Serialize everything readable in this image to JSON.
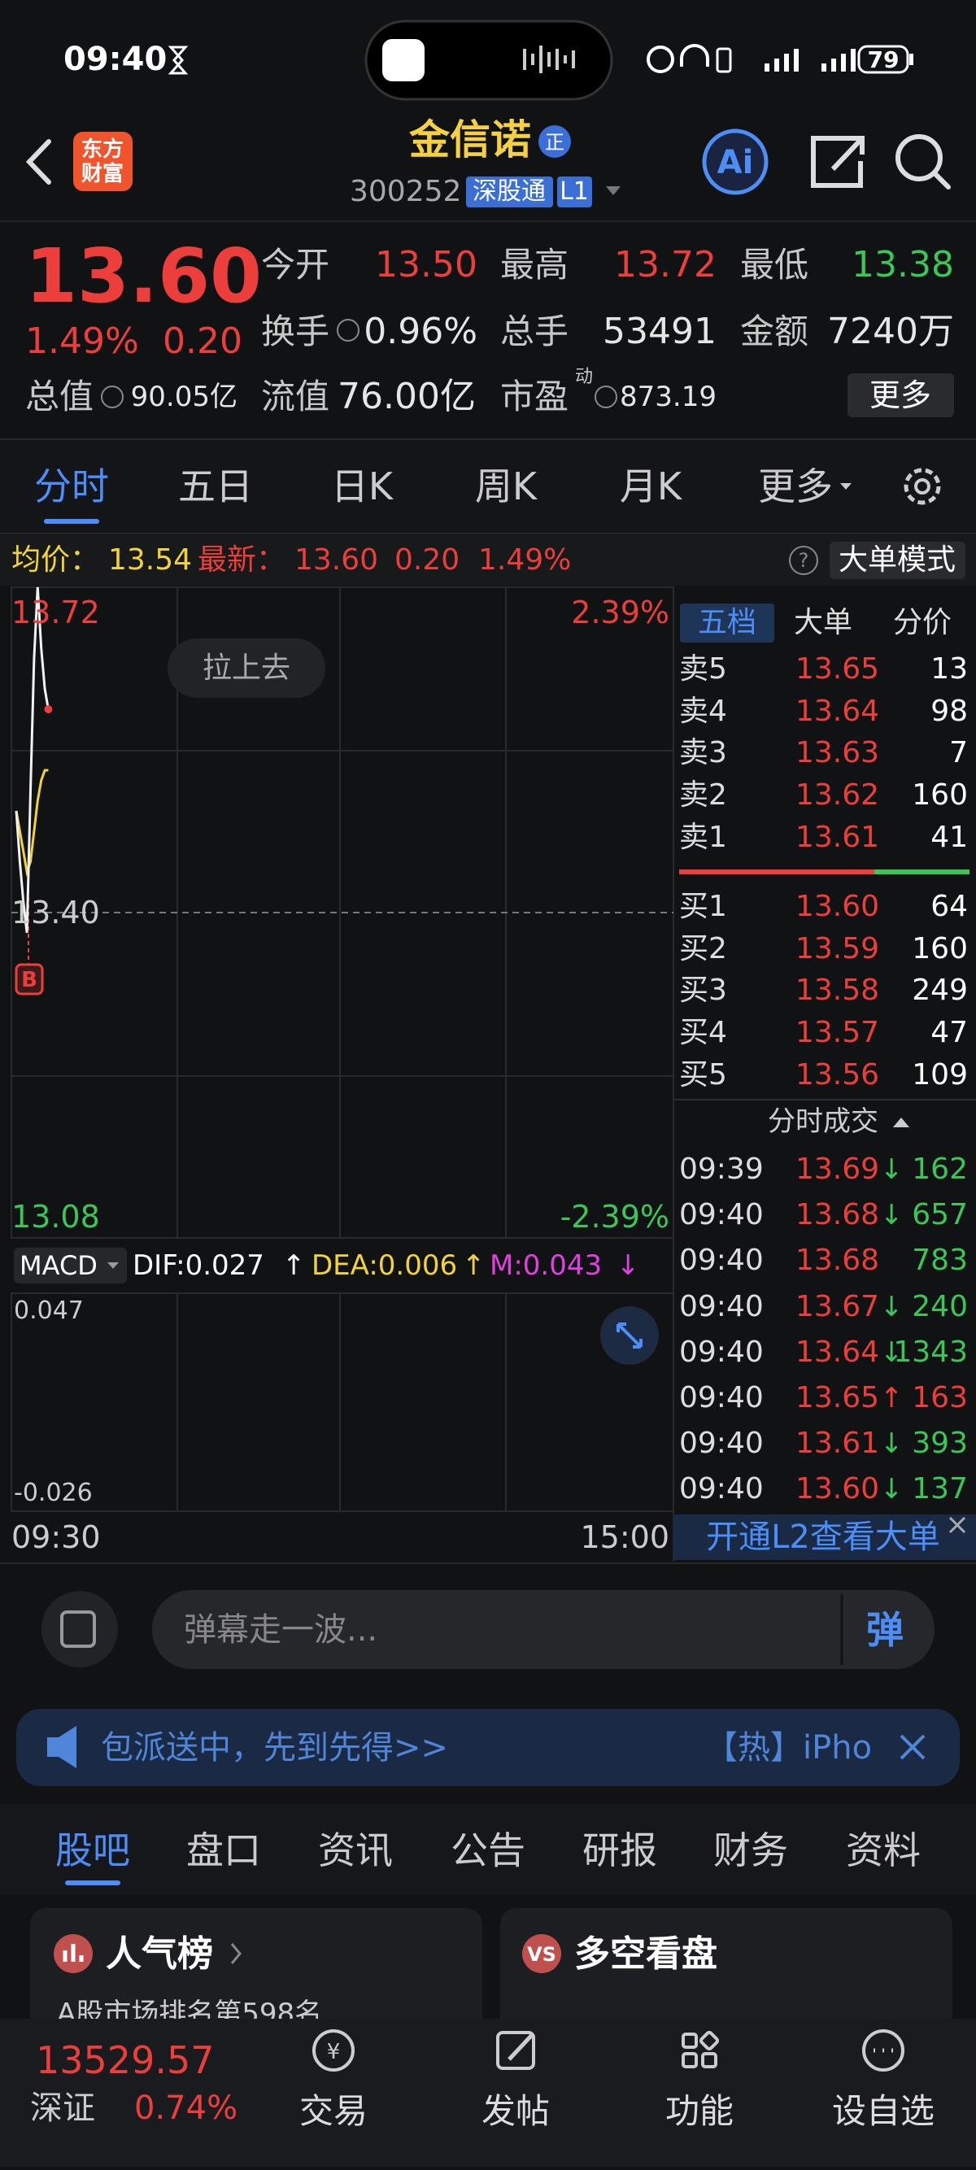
{
  "status_bar": {
    "time": "09:40",
    "battery": "79"
  },
  "header": {
    "logo": [
      "东方",
      "财富"
    ],
    "title": "金信诺",
    "badge": "正",
    "code": "300252",
    "connect": "深股通",
    "level": "L1",
    "ai": "Ai"
  },
  "quote": {
    "price": "13.60",
    "change_pct": "1.49%",
    "change": "0.20",
    "stats": [
      {
        "label": "今开",
        "value": "13.50"
      },
      {
        "label": "最高",
        "value": "13.72"
      },
      {
        "label": "最低",
        "value": "13.38"
      },
      {
        "label": "换手",
        "value": "0.96%"
      },
      {
        "label": "总手",
        "value": "53491"
      },
      {
        "label": "金额",
        "value": "7240万"
      },
      {
        "label": "总值",
        "value": "90.05亿"
      },
      {
        "label": "流值",
        "value": "76.00亿"
      },
      {
        "label": "市盈",
        "sup": "动",
        "value": "873.19"
      }
    ],
    "more": "更多"
  },
  "tabs": {
    "items": [
      "分时",
      "五日",
      "日K",
      "周K",
      "月K",
      "更多"
    ],
    "active": 0
  },
  "info_line": {
    "avg_label": "均价：",
    "avg": "13.54",
    "last_label": "最新：",
    "last": "13.60",
    "change": "0.20",
    "change_pct": "1.49%",
    "mode_button": "大单模式"
  },
  "intraday": {
    "price_ticks": [
      13.72,
      {
        "value": 13.4,
        "label": "13.40"
      },
      13.08
    ],
    "pct_top": "2.39%",
    "pct_bottom": "-2.39%",
    "prices": [
      13.5,
      13.45,
      13.41,
      13.38,
      13.52,
      13.65,
      13.72,
      13.66,
      13.62,
      13.6
    ],
    "avg_prices": [
      13.5,
      13.48,
      13.46,
      13.44,
      13.45,
      13.48,
      13.51,
      13.53,
      13.54,
      13.54
    ],
    "hint": "拉上去",
    "buy_marker": "B",
    "time_start": "09:30",
    "time_end": "15:00"
  },
  "macd": {
    "label": "MACD",
    "dif": "DIF:0.027",
    "dif_arrow": "↑",
    "dea": "DEA:0.006",
    "dea_arrow": "↑",
    "m": "M:0.043",
    "m_arrow": "↓",
    "top": "0.047",
    "bottom": "-0.026"
  },
  "order_book": {
    "tabs": [
      "五档",
      "大单",
      "分价"
    ],
    "asks": [
      {
        "label": "卖5",
        "price": "13.65",
        "volume": "13"
      },
      {
        "label": "卖4",
        "price": "13.64",
        "volume": "98"
      },
      {
        "label": "卖3",
        "price": "13.63",
        "volume": "7"
      },
      {
        "label": "卖2",
        "price": "13.62",
        "volume": "160"
      },
      {
        "label": "卖1",
        "price": "13.61",
        "volume": "41"
      }
    ],
    "bids": [
      {
        "label": "买1",
        "price": "13.60",
        "volume": "64"
      },
      {
        "label": "买2",
        "price": "13.59",
        "volume": "160"
      },
      {
        "label": "买3",
        "price": "13.58",
        "volume": "249"
      },
      {
        "label": "买4",
        "price": "13.57",
        "volume": "47"
      },
      {
        "label": "买5",
        "price": "13.56",
        "volume": "109"
      }
    ],
    "trades_title": "分时成交",
    "trades": [
      {
        "time": "09:39",
        "price": "13.69",
        "arrow": "↓",
        "volume": "162"
      },
      {
        "time": "09:40",
        "price": "13.68",
        "arrow": "↓",
        "volume": "657"
      },
      {
        "time": "09:40",
        "price": "13.68",
        "volume": "783"
      },
      {
        "time": "09:40",
        "price": "13.67",
        "arrow": "↓",
        "volume": "240"
      },
      {
        "time": "09:40",
        "price": "13.64",
        "arrow": "↓",
        "volume": "1343"
      },
      {
        "time": "09:40",
        "price": "13.65",
        "arrow": "↑",
        "volume": "163"
      },
      {
        "time": "09:40",
        "price": "13.61",
        "arrow": "↓",
        "volume": "393"
      },
      {
        "time": "09:40",
        "price": "13.60",
        "arrow": "↓",
        "volume": "137"
      }
    ],
    "l2_promo": "开通L2查看大单"
  },
  "comment_bar": {
    "placeholder": "弹幕走一波...",
    "button": "弹"
  },
  "banner": {
    "text": "包派送中，先到先得>>",
    "tag": "【热】iPho"
  },
  "section_tabs": {
    "items": [
      "股吧",
      "盘口",
      "资讯",
      "公告",
      "研报",
      "财务",
      "资料"
    ],
    "active": 0
  },
  "cards": [
    {
      "title": "人气榜",
      "subtitle": "A股市场排名第598名"
    },
    {
      "title": "多空看盘"
    }
  ],
  "bottom_bar": {
    "index_value": "13529.57",
    "index_name": "深证",
    "index_change": "0.74%",
    "nav": [
      "交易",
      "发帖",
      "功能",
      "设自选"
    ]
  }
}
